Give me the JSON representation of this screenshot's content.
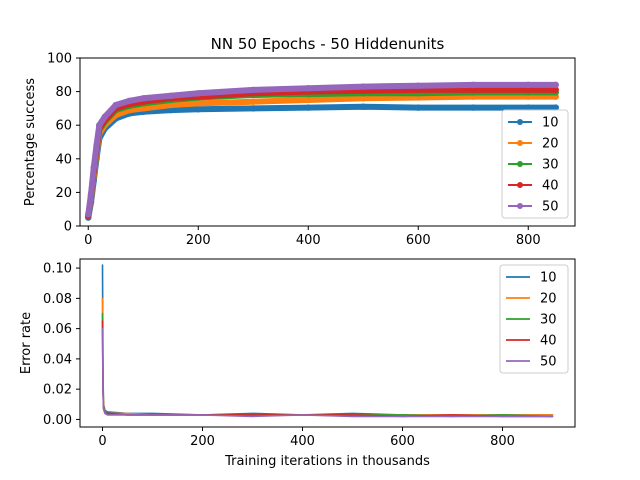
{
  "colors": [
    "#1f77b4",
    "#ff7f0e",
    "#2ca02c",
    "#d62728",
    "#9467bd"
  ],
  "chart_data": [
    {
      "type": "line",
      "title": "NN 50 Epochs - 50 Hiddenunits",
      "xlabel": "",
      "ylabel": "Percentage success",
      "xlim": [
        -15,
        885
      ],
      "ylim": [
        0,
        100
      ],
      "xticks": [
        0,
        200,
        400,
        600,
        800
      ],
      "yticks": [
        0,
        20,
        40,
        60,
        80,
        100
      ],
      "grid": false,
      "legend": "right, lower half",
      "markers": true,
      "series": [
        {
          "name": "10",
          "x": [
            0,
            5,
            10,
            15,
            20,
            30,
            50,
            75,
            100,
            150,
            200,
            300,
            400,
            500,
            600,
            700,
            800,
            850
          ],
          "values": [
            5,
            14,
            27,
            40,
            52,
            58,
            64,
            67,
            68,
            69,
            69.5,
            70,
            70.5,
            71,
            70.5,
            70.5,
            70.5,
            70.5
          ]
        },
        {
          "name": "20",
          "x": [
            0,
            5,
            10,
            15,
            20,
            30,
            50,
            75,
            100,
            150,
            200,
            300,
            400,
            500,
            600,
            700,
            800,
            850
          ],
          "values": [
            6,
            16,
            30,
            43,
            55,
            60,
            66,
            69,
            70,
            72,
            73,
            74,
            75,
            76,
            76.5,
            77,
            77,
            77
          ]
        },
        {
          "name": "30",
          "x": [
            0,
            5,
            10,
            15,
            20,
            30,
            50,
            75,
            100,
            150,
            200,
            300,
            400,
            500,
            600,
            700,
            800,
            850
          ],
          "values": [
            6,
            17,
            32,
            45,
            57,
            62,
            69,
            71.5,
            73,
            75,
            76.5,
            78,
            78.5,
            79,
            79,
            79.5,
            79.5,
            79.5
          ]
        },
        {
          "name": "40",
          "x": [
            0,
            5,
            10,
            15,
            20,
            30,
            50,
            75,
            100,
            150,
            200,
            300,
            400,
            500,
            600,
            700,
            800,
            850
          ],
          "values": [
            6,
            18,
            33,
            46,
            58,
            63,
            70,
            72.5,
            74,
            76,
            77,
            79,
            80,
            80.5,
            81,
            81,
            81,
            81
          ]
        },
        {
          "name": "50",
          "x": [
            0,
            5,
            10,
            15,
            20,
            30,
            50,
            75,
            100,
            150,
            200,
            300,
            400,
            500,
            600,
            700,
            800,
            850
          ],
          "values": [
            7,
            19,
            35,
            48,
            60,
            65,
            72,
            74.5,
            76,
            77.5,
            79,
            81,
            82,
            83,
            83.5,
            84,
            84,
            84
          ]
        }
      ]
    },
    {
      "type": "line",
      "title": "",
      "xlabel": "Training iterations in thousands",
      "ylabel": "Error rate",
      "xlim": [
        -45,
        945
      ],
      "ylim": [
        -0.005,
        0.106
      ],
      "xticks": [
        0,
        200,
        400,
        600,
        800
      ],
      "yticks": [
        0.0,
        0.02,
        0.04,
        0.06,
        0.08,
        0.1
      ],
      "ytick_labels": [
        "0.00",
        "0.02",
        "0.04",
        "0.06",
        "0.08",
        "0.10"
      ],
      "grid": false,
      "legend": "upper right",
      "markers": false,
      "series": [
        {
          "name": "10",
          "x": [
            0,
            1,
            2,
            5,
            10,
            50,
            100,
            200,
            300,
            400,
            500,
            600,
            700,
            800,
            900
          ],
          "values": [
            0.102,
            0.03,
            0.01,
            0.006,
            0.005,
            0.004,
            0.004,
            0.003,
            0.004,
            0.003,
            0.004,
            0.003,
            0.003,
            0.003,
            0.003
          ]
        },
        {
          "name": "20",
          "x": [
            0,
            1,
            2,
            5,
            10,
            50,
            100,
            200,
            300,
            400,
            500,
            600,
            700,
            800,
            900
          ],
          "values": [
            0.08,
            0.025,
            0.009,
            0.005,
            0.004,
            0.004,
            0.003,
            0.003,
            0.003,
            0.003,
            0.003,
            0.003,
            0.003,
            0.003,
            0.003
          ]
        },
        {
          "name": "30",
          "x": [
            0,
            1,
            2,
            5,
            10,
            50,
            100,
            200,
            300,
            400,
            500,
            600,
            700,
            800,
            900
          ],
          "values": [
            0.07,
            0.022,
            0.008,
            0.005,
            0.004,
            0.003,
            0.003,
            0.003,
            0.003,
            0.003,
            0.003,
            0.003,
            0.002,
            0.003,
            0.002
          ]
        },
        {
          "name": "40",
          "x": [
            0,
            1,
            2,
            5,
            10,
            50,
            100,
            200,
            300,
            400,
            500,
            600,
            700,
            800,
            900
          ],
          "values": [
            0.065,
            0.02,
            0.007,
            0.004,
            0.004,
            0.003,
            0.003,
            0.003,
            0.003,
            0.003,
            0.003,
            0.002,
            0.003,
            0.002,
            0.002
          ]
        },
        {
          "name": "50",
          "x": [
            0,
            1,
            2,
            5,
            10,
            50,
            100,
            200,
            300,
            400,
            500,
            600,
            700,
            800,
            900
          ],
          "values": [
            0.06,
            0.018,
            0.007,
            0.004,
            0.003,
            0.003,
            0.003,
            0.003,
            0.002,
            0.003,
            0.002,
            0.002,
            0.002,
            0.002,
            0.002
          ]
        }
      ]
    }
  ]
}
